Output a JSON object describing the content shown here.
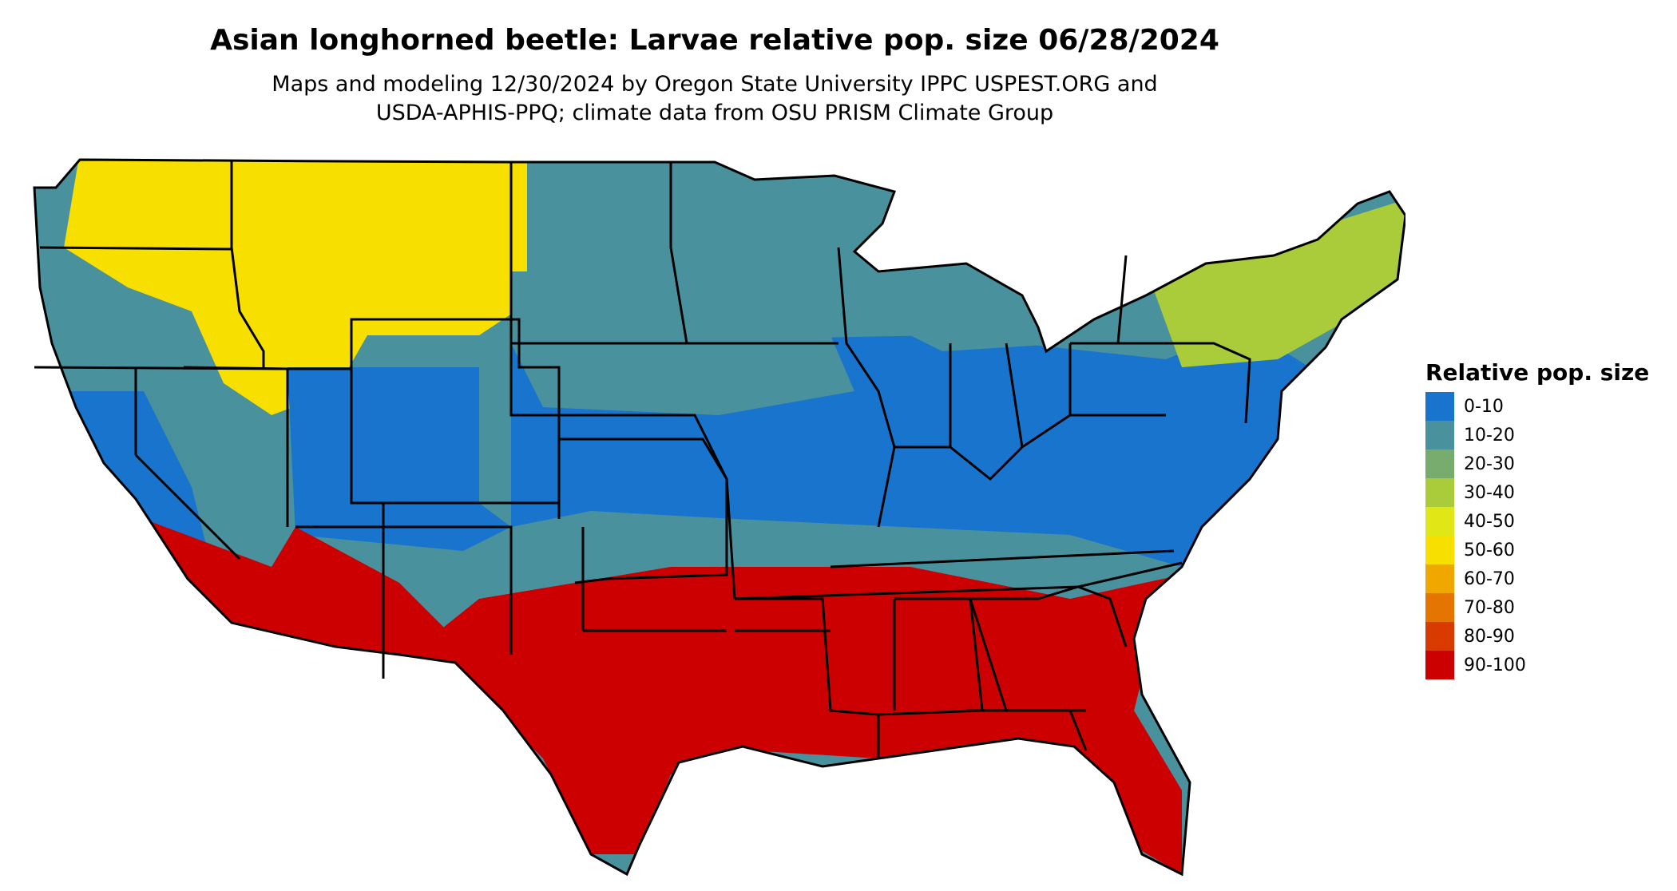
{
  "title": "Asian longhorned beetle: Larvae relative pop. size 06/28/2024",
  "subtitle_line1": "Maps and modeling 12/30/2024 by Oregon State University IPPC USPEST.ORG and",
  "subtitle_line2": "USDA-APHIS-PPQ; climate data from OSU PRISM Climate Group",
  "legend": {
    "title": "Relative pop. size",
    "items": [
      {
        "label": "0-10",
        "color": "#1874cd"
      },
      {
        "label": "10-20",
        "color": "#4a919e"
      },
      {
        "label": "20-30",
        "color": "#78ab6e"
      },
      {
        "label": "30-40",
        "color": "#aacb3a"
      },
      {
        "label": "40-50",
        "color": "#dfe816"
      },
      {
        "label": "50-60",
        "color": "#f7df00"
      },
      {
        "label": "60-70",
        "color": "#f0a800"
      },
      {
        "label": "70-80",
        "color": "#e37500"
      },
      {
        "label": "80-90",
        "color": "#d83a00"
      },
      {
        "label": "90-100",
        "color": "#cc0000"
      }
    ]
  },
  "map": {
    "region": "Contiguous United States",
    "regions": [
      {
        "name": "South (TX, LA, MS, AL, GA, FL, SC)",
        "class": "90-100"
      },
      {
        "name": "Southwest desert (AZ, S. CA)",
        "class": "90-100"
      },
      {
        "name": "Central Plains, Midwest & Northeast",
        "class": "0-10"
      },
      {
        "name": "Upper Midwest & Northern Plains",
        "class": "10-20"
      },
      {
        "name": "Northern Rockies & Great Plains",
        "class": "50-60"
      },
      {
        "name": "Northern New England",
        "class": "30-40"
      }
    ]
  }
}
